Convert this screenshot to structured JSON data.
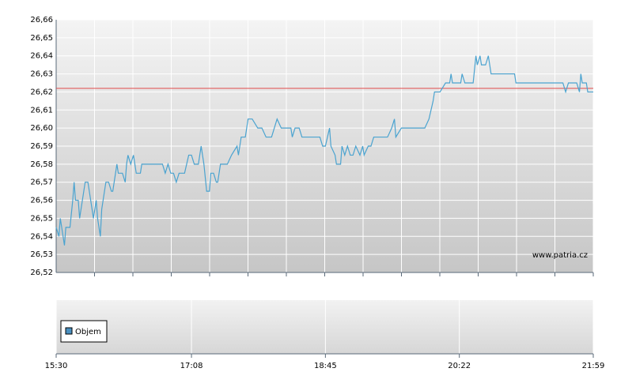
{
  "chart_data": {
    "type": "line",
    "watermark": "www.patria.cz",
    "color": "#4aa3d0",
    "x": [
      "15:30",
      "15:32",
      "15:33",
      "15:35",
      "15:36",
      "15:37",
      "15:40",
      "15:42",
      "15:43",
      "15:44",
      "15:46",
      "15:47",
      "15:49",
      "15:51",
      "15:53",
      "15:56",
      "15:57",
      "15:59",
      "16:00",
      "16:02",
      "16:03",
      "16:04",
      "16:06",
      "16:08",
      "16:10",
      "16:11",
      "16:14",
      "16:15",
      "16:18",
      "16:20",
      "16:21",
      "16:22",
      "16:24",
      "16:26",
      "16:27",
      "16:28",
      "16:31",
      "16:32",
      "16:47",
      "16:49",
      "16:51",
      "16:53",
      "16:55",
      "16:57",
      "16:59",
      "17:03",
      "17:06",
      "17:08",
      "17:10",
      "17:13",
      "17:15",
      "17:17",
      "17:19",
      "17:21",
      "17:22",
      "17:24",
      "17:26",
      "17:27",
      "17:29",
      "17:34",
      "17:37",
      "17:41",
      "17:42",
      "17:44",
      "17:47",
      "17:49",
      "17:52",
      "17:56",
      "17:59",
      "18:02",
      "18:06",
      "18:10",
      "18:13",
      "18:20",
      "18:21",
      "18:23",
      "18:26",
      "18:28",
      "18:41",
      "18:43",
      "18:45",
      "18:48",
      "18:49",
      "18:52",
      "18:53",
      "18:56",
      "18:57",
      "18:59",
      "19:01",
      "19:03",
      "19:05",
      "19:07",
      "19:10",
      "19:12",
      "19:13",
      "19:16",
      "19:18",
      "19:20",
      "19:30",
      "19:33",
      "19:35",
      "19:36",
      "19:40",
      "19:57",
      "20:00",
      "20:03",
      "20:04",
      "20:08",
      "20:12",
      "20:15",
      "20:16",
      "20:17",
      "20:23",
      "20:24",
      "20:26",
      "20:32",
      "20:34",
      "20:35",
      "20:37",
      "20:38",
      "20:41",
      "20:43",
      "20:45",
      "20:46",
      "20:48",
      "21:02",
      "21:03",
      "21:37",
      "21:39",
      "21:41",
      "21:47",
      "21:49",
      "21:50",
      "21:51",
      "21:54",
      "21:55",
      "21:59"
    ],
    "values": [
      26.545,
      26.54,
      26.55,
      26.54,
      26.535,
      26.545,
      26.545,
      26.56,
      26.57,
      26.56,
      26.56,
      26.55,
      26.56,
      26.57,
      26.57,
      26.555,
      26.55,
      26.56,
      26.55,
      26.54,
      26.555,
      26.56,
      26.57,
      26.57,
      26.565,
      26.565,
      26.58,
      26.575,
      26.575,
      26.57,
      26.58,
      26.585,
      26.58,
      26.585,
      26.58,
      26.575,
      26.575,
      26.58,
      26.58,
      26.575,
      26.58,
      26.575,
      26.575,
      26.57,
      26.575,
      26.575,
      26.585,
      26.585,
      26.58,
      26.58,
      26.59,
      26.58,
      26.565,
      26.565,
      26.575,
      26.575,
      26.57,
      26.57,
      26.58,
      26.58,
      26.585,
      26.59,
      26.585,
      26.595,
      26.595,
      26.605,
      26.605,
      26.6,
      26.6,
      26.595,
      26.595,
      26.605,
      26.6,
      26.6,
      26.595,
      26.6,
      26.6,
      26.595,
      26.595,
      26.59,
      26.59,
      26.6,
      26.59,
      26.585,
      26.58,
      26.58,
      26.59,
      26.585,
      26.59,
      26.585,
      26.585,
      26.59,
      26.585,
      26.59,
      26.585,
      26.59,
      26.59,
      26.595,
      26.595,
      26.6,
      26.605,
      26.595,
      26.6,
      26.6,
      26.605,
      26.615,
      26.62,
      26.62,
      26.625,
      26.625,
      26.63,
      26.625,
      26.625,
      26.63,
      26.625,
      26.625,
      26.64,
      26.635,
      26.64,
      26.635,
      26.635,
      26.64,
      26.63,
      26.63,
      26.63,
      26.63,
      26.625,
      26.625,
      26.62,
      26.625,
      26.625,
      26.62,
      26.63,
      26.625,
      26.625,
      26.62,
      26.62
    ],
    "reference_line": {
      "value": 26.622,
      "color": "#e04848"
    },
    "xlim": [
      "15:30",
      "21:59"
    ],
    "xticks": [
      "15:30",
      "17:08",
      "18:45",
      "20:22",
      "21:59"
    ],
    "ylim": [
      26.52,
      26.66
    ],
    "yticks": [
      {
        "value": 26.52,
        "label": "26,52"
      },
      {
        "value": 26.53,
        "label": "26,53"
      },
      {
        "value": 26.54,
        "label": "26,54"
      },
      {
        "value": 26.55,
        "label": "26,55"
      },
      {
        "value": 26.56,
        "label": "26,56"
      },
      {
        "value": 26.57,
        "label": "26,57"
      },
      {
        "value": 26.58,
        "label": "26,58"
      },
      {
        "value": 26.59,
        "label": "26,59"
      },
      {
        "value": 26.6,
        "label": "26,60"
      },
      {
        "value": 26.61,
        "label": "26,61"
      },
      {
        "value": 26.62,
        "label": "26,62"
      },
      {
        "value": 26.63,
        "label": "26,63"
      },
      {
        "value": 26.64,
        "label": "26,64"
      },
      {
        "value": 26.65,
        "label": "26,65"
      },
      {
        "value": 26.66,
        "label": "26,66"
      }
    ],
    "grid": true,
    "volume": {
      "name": "Objem",
      "color": "#4a90c0"
    }
  }
}
